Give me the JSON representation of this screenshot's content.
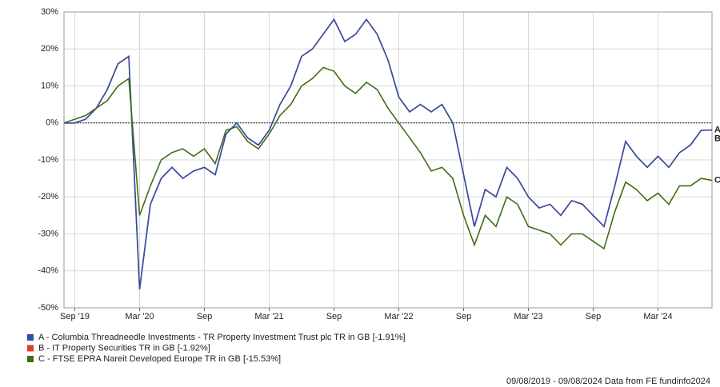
{
  "chart_data": {
    "type": "line",
    "x": [
      "2019-08",
      "2019-09",
      "2019-10",
      "2019-11",
      "2019-12",
      "2020-01",
      "2020-02",
      "2020-03",
      "2020-04",
      "2020-05",
      "2020-06",
      "2020-07",
      "2020-08",
      "2020-09",
      "2020-10",
      "2020-11",
      "2020-12",
      "2021-01",
      "2021-02",
      "2021-03",
      "2021-04",
      "2021-05",
      "2021-06",
      "2021-07",
      "2021-08",
      "2021-09",
      "2021-10",
      "2021-11",
      "2021-12",
      "2022-01",
      "2022-02",
      "2022-03",
      "2022-04",
      "2022-05",
      "2022-06",
      "2022-07",
      "2022-08",
      "2022-09",
      "2022-10",
      "2022-11",
      "2022-12",
      "2023-01",
      "2023-02",
      "2023-03",
      "2023-04",
      "2023-05",
      "2023-06",
      "2023-07",
      "2023-08",
      "2023-09",
      "2023-10",
      "2023-11",
      "2023-12",
      "2024-01",
      "2024-02",
      "2024-03",
      "2024-04",
      "2024-05",
      "2024-06",
      "2024-07",
      "2024-08"
    ],
    "series": [
      {
        "name": "B - IT Property Securities TR in GB [-1.92%]",
        "end_label": "B",
        "color": "#d9461e",
        "values": [
          0,
          0,
          1,
          4,
          9,
          16,
          18,
          -45,
          -22,
          -15,
          -12,
          -15,
          -13,
          -12,
          -14,
          -3,
          0,
          -4,
          -6,
          -2,
          5,
          10,
          18,
          20,
          24,
          28,
          22,
          24,
          28,
          24,
          17,
          7,
          3,
          5,
          3,
          5,
          0,
          -14,
          -28,
          -18,
          -20,
          -12,
          -15,
          -20,
          -23,
          -22,
          -25,
          -21,
          -22,
          -25,
          -28,
          -17,
          -5,
          -9,
          -12,
          -9,
          -12,
          -8,
          -6,
          -2,
          -1.92
        ]
      },
      {
        "name": "A - Columbia Threadneedle Investments - TR Property Investment Trust plc TR in GB [-1.91%]",
        "end_label": "A",
        "color": "#2f4fa8",
        "values": [
          0,
          0,
          1,
          4,
          9,
          16,
          18,
          -45,
          -22,
          -15,
          -12,
          -15,
          -13,
          -12,
          -14,
          -3,
          0,
          -4,
          -6,
          -2,
          5,
          10,
          18,
          20,
          24,
          28,
          22,
          24,
          28,
          24,
          17,
          7,
          3,
          5,
          3,
          5,
          0,
          -14,
          -28,
          -18,
          -20,
          -12,
          -15,
          -20,
          -23,
          -22,
          -25,
          -21,
          -22,
          -25,
          -28,
          -17,
          -5,
          -9,
          -12,
          -9,
          -12,
          -8,
          -6,
          -2,
          -1.91
        ]
      },
      {
        "name": "C - FTSE EPRA Nareit Developed Europe TR in GB [-15.53%]",
        "end_label": "C",
        "color": "#3f6e14",
        "values": [
          0,
          1,
          2,
          4,
          6,
          10,
          12,
          -25,
          -17,
          -10,
          -8,
          -7,
          -9,
          -7,
          -11,
          -2,
          -1,
          -5,
          -7,
          -3,
          2,
          5,
          10,
          12,
          15,
          14,
          10,
          8,
          11,
          9,
          4,
          0,
          -4,
          -8,
          -13,
          -12,
          -15,
          -25,
          -33,
          -25,
          -28,
          -20,
          -22,
          -28,
          -29,
          -30,
          -33,
          -30,
          -30,
          -32,
          -34,
          -24,
          -16,
          -18,
          -21,
          -19,
          -22,
          -17,
          -17,
          -15,
          -15.53
        ]
      }
    ],
    "legend_order": [
      1,
      0,
      2
    ],
    "xlim": [
      "2019-08",
      "2024-08"
    ],
    "xticks": [
      {
        "value": "2019-09",
        "label": "Sep '19"
      },
      {
        "value": "2020-03",
        "label": "Mar '20"
      },
      {
        "value": "2020-09",
        "label": "Sep"
      },
      {
        "value": "2021-03",
        "label": "Mar '21"
      },
      {
        "value": "2021-09",
        "label": "Sep"
      },
      {
        "value": "2022-03",
        "label": "Mar '22"
      },
      {
        "value": "2022-09",
        "label": "Sep"
      },
      {
        "value": "2023-03",
        "label": "Mar '23"
      },
      {
        "value": "2023-09",
        "label": "Sep"
      },
      {
        "value": "2024-03",
        "label": "Mar '24"
      }
    ],
    "ylim": [
      -50,
      30
    ],
    "yticks": [
      {
        "value": -50,
        "label": "-50%"
      },
      {
        "value": -40,
        "label": "-40%"
      },
      {
        "value": -30,
        "label": "-30%"
      },
      {
        "value": -20,
        "label": "-20%"
      },
      {
        "value": -10,
        "label": "-10%"
      },
      {
        "value": 0,
        "label": "0%"
      },
      {
        "value": 10,
        "label": "10%"
      },
      {
        "value": 20,
        "label": "20%"
      },
      {
        "value": 30,
        "label": "30%"
      }
    ],
    "grid": true,
    "zero_line": true,
    "footer": "09/08/2019 - 09/08/2024 Data from FE fundinfo2024"
  }
}
